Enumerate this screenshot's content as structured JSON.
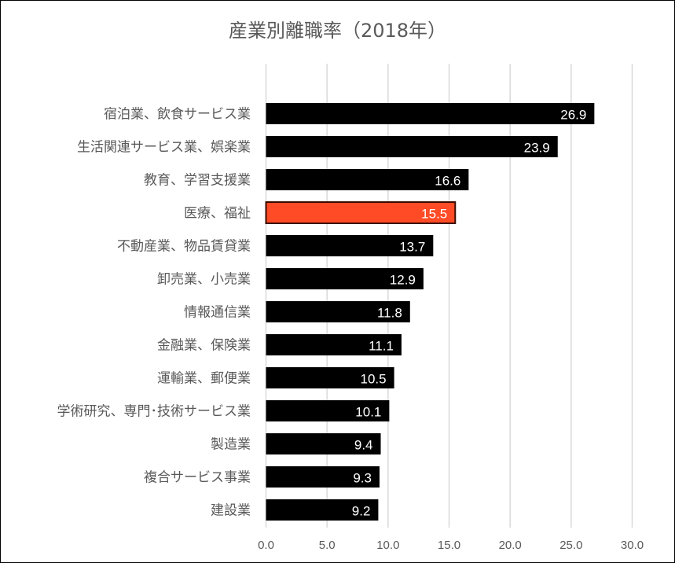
{
  "chart_data": {
    "type": "bar",
    "orientation": "horizontal",
    "title": "産業別離職率（2018年）",
    "categories": [
      "宿泊業、飲食サービス業",
      "生活関連サービス業、娯楽業",
      "教育、学習支援業",
      "医療、福祉",
      "不動産業、物品賃貸業",
      "卸売業、小売業",
      "情報通信業",
      "金融業、保険業",
      "運輸業、郵便業",
      "学術研究、専門･技術サービス業",
      "製造業",
      "複合サービス事業",
      "建設業"
    ],
    "values": [
      26.9,
      23.9,
      16.6,
      15.5,
      13.7,
      12.9,
      11.8,
      11.1,
      10.5,
      10.1,
      9.4,
      9.3,
      9.2
    ],
    "value_labels": [
      "26.9",
      "23.9",
      "16.6",
      "15.5",
      "13.7",
      "12.9",
      "11.8",
      "11.1",
      "10.5",
      "10.1",
      "9.4",
      "9.3",
      "9.2"
    ],
    "xlim": [
      0,
      30
    ],
    "xticks": [
      "0.0",
      "5.0",
      "10.0",
      "15.0",
      "20.0",
      "25.0",
      "30.0"
    ],
    "grid": true,
    "highlight_index": 3,
    "colors": {
      "bar": "#000000",
      "highlight": "#FF4B26",
      "highlight_border": "#3a0a00",
      "grid": "#D9D9D9",
      "text": "#595959"
    }
  }
}
